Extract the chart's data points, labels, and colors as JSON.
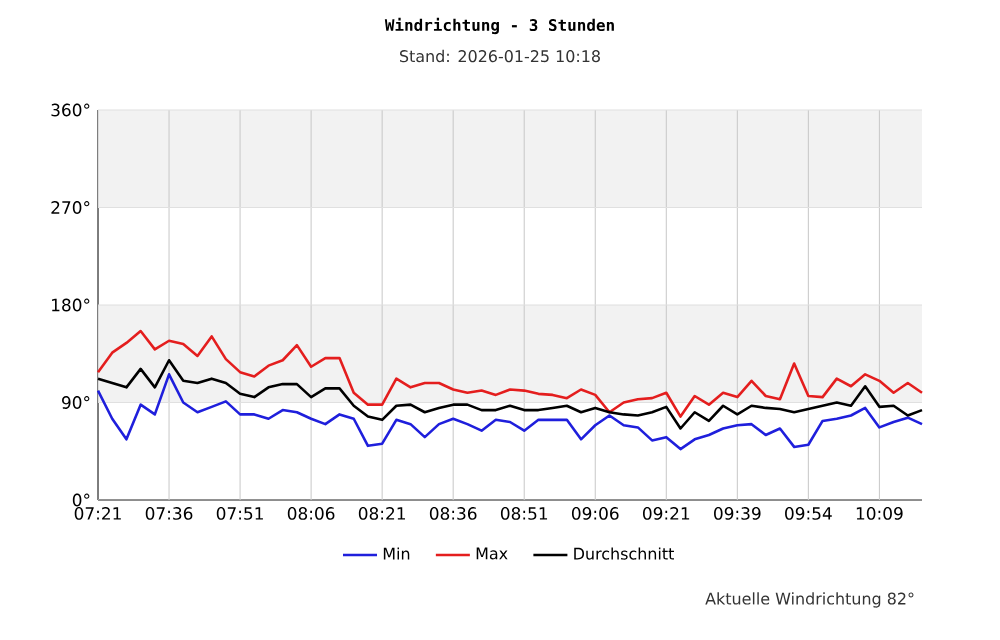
{
  "chart_data": {
    "type": "line",
    "title": "Windrichtung - 3 Stunden",
    "subtitle": "Stand: 2026-01-25 10:18",
    "categories": [
      "07:21",
      null,
      null,
      null,
      null,
      "07:36",
      null,
      null,
      null,
      null,
      "07:51",
      null,
      null,
      null,
      null,
      "08:06",
      null,
      null,
      null,
      null,
      "08:21",
      null,
      null,
      null,
      null,
      "08:36",
      null,
      null,
      null,
      null,
      "08:51",
      null,
      null,
      null,
      null,
      "09:06",
      null,
      null,
      null,
      null,
      "09:21",
      null,
      null,
      null,
      null,
      "09:39",
      null,
      null,
      null,
      null,
      "09:54",
      null,
      null,
      null,
      null,
      "10:09",
      null,
      null,
      null
    ],
    "series": [
      {
        "name": "Min",
        "color": "#1f1fdc",
        "values": [
          101,
          75,
          56,
          88,
          79,
          116,
          90,
          81,
          86,
          91,
          79,
          79,
          75,
          83,
          81,
          75,
          70,
          79,
          75,
          50,
          52,
          74,
          70,
          58,
          70,
          75,
          70,
          64,
          74,
          72,
          64,
          74,
          74,
          74,
          56,
          69,
          78,
          69,
          67,
          55,
          58,
          47,
          56,
          60,
          66,
          69,
          70,
          60,
          66,
          49,
          51,
          73,
          75,
          78,
          85,
          67,
          72,
          76,
          70
        ]
      },
      {
        "name": "Max",
        "color": "#e41e1e",
        "values": [
          118,
          136,
          145,
          156,
          139,
          147,
          144,
          133,
          151,
          130,
          118,
          114,
          124,
          129,
          143,
          123,
          131,
          131,
          99,
          88,
          88,
          112,
          104,
          108,
          108,
          102,
          99,
          101,
          97,
          102,
          101,
          98,
          97,
          94,
          102,
          97,
          81,
          90,
          93,
          94,
          99,
          77,
          96,
          88,
          99,
          95,
          110,
          96,
          93,
          126,
          96,
          95,
          112,
          105,
          116,
          110,
          99,
          108,
          99
        ]
      },
      {
        "name": "Durchschnitt",
        "color": "#000000",
        "values": [
          112,
          108,
          104,
          121,
          104,
          129,
          110,
          108,
          112,
          108,
          98,
          95,
          104,
          107,
          107,
          95,
          103,
          103,
          87,
          77,
          74,
          87,
          88,
          81,
          85,
          88,
          88,
          83,
          83,
          87,
          83,
          83,
          85,
          87,
          81,
          85,
          81,
          79,
          78,
          81,
          86,
          66,
          81,
          73,
          87,
          79,
          87,
          85,
          84,
          81,
          84,
          87,
          90,
          87,
          105,
          86,
          87,
          78,
          83
        ]
      }
    ],
    "ylim": [
      0,
      360
    ],
    "yticks": [
      {
        "value": 0,
        "label": "0°"
      },
      {
        "value": 90,
        "label": "90°"
      },
      {
        "value": 180,
        "label": "180°"
      },
      {
        "value": 270,
        "label": "270°"
      },
      {
        "value": 360,
        "label": "360°"
      }
    ],
    "bands": [
      {
        "axis": "y",
        "from": 90,
        "to": 180,
        "color": "#f2f2f2"
      },
      {
        "axis": "y",
        "from": 270,
        "to": 360,
        "color": "#f2f2f2"
      }
    ],
    "grid": true,
    "legend": "bottom",
    "annotations": [
      "Aktuelle Windrichtung 82°"
    ]
  }
}
